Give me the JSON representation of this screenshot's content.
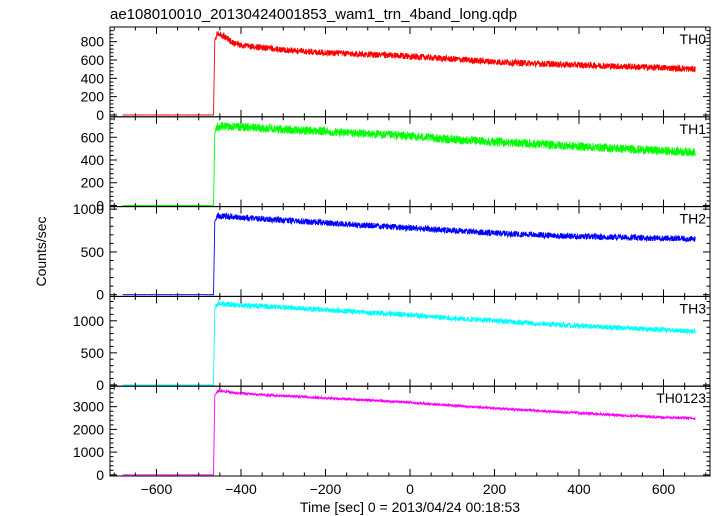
{
  "chart_data": {
    "type": "line",
    "title": "ae108010010_20130424001853_wam1_trn_4band_long.qdp",
    "xlabel": "Time [sec] 0 = 2013/04/24 00:18:53",
    "ylabel": "Counts/sec",
    "xlim": [
      -710,
      710
    ],
    "xticks": [
      -600,
      -400,
      -200,
      0,
      200,
      400,
      600
    ],
    "xtick_labels": [
      "−600",
      "−400",
      "−200",
      "0",
      "200",
      "400",
      "600"
    ],
    "trigger_x": -460,
    "grid": false,
    "panels": [
      {
        "name": "TH0",
        "color": "#ff0000",
        "ylim": [
          -20,
          960
        ],
        "yticks": [
          0,
          200,
          400,
          600,
          800
        ],
        "series": {
          "x": [
            -680,
            -465,
            -462,
            -455,
            -440,
            -420,
            -400,
            -300,
            -200,
            -100,
            0,
            100,
            200,
            300,
            400,
            500,
            600,
            675
          ],
          "y": [
            0,
            0,
            820,
            900,
            860,
            790,
            760,
            710,
            680,
            660,
            640,
            610,
            580,
            560,
            545,
            530,
            515,
            500
          ]
        },
        "noise": 35
      },
      {
        "name": "TH1",
        "color": "#00ff00",
        "ylim": [
          -10,
          780
        ],
        "yticks": [
          0,
          200,
          400,
          600
        ],
        "series": {
          "x": [
            -680,
            -465,
            -462,
            -455,
            -440,
            -400,
            -300,
            -200,
            -100,
            0,
            100,
            200,
            300,
            400,
            500,
            600,
            675
          ],
          "y": [
            0,
            0,
            640,
            690,
            700,
            690,
            670,
            650,
            630,
            610,
            580,
            560,
            540,
            520,
            500,
            480,
            470
          ]
        },
        "noise": 38
      },
      {
        "name": "TH2",
        "color": "#0000ff",
        "ylim": [
          -20,
          1030
        ],
        "yticks": [
          0,
          500,
          1000
        ],
        "series": {
          "x": [
            -680,
            -465,
            -462,
            -455,
            -440,
            -400,
            -300,
            -200,
            -100,
            0,
            100,
            200,
            300,
            400,
            500,
            600,
            675
          ],
          "y": [
            0,
            0,
            860,
            920,
            920,
            900,
            870,
            840,
            810,
            780,
            750,
            720,
            700,
            680,
            670,
            660,
            650
          ]
        },
        "noise": 35
      },
      {
        "name": "TH3",
        "color": "#00ffff",
        "ylim": [
          -20,
          1380
        ],
        "yticks": [
          0,
          500,
          1000
        ],
        "series": {
          "x": [
            -680,
            -465,
            -462,
            -455,
            -440,
            -400,
            -300,
            -200,
            -100,
            0,
            100,
            200,
            300,
            400,
            500,
            600,
            675
          ],
          "y": [
            0,
            0,
            1200,
            1270,
            1260,
            1240,
            1210,
            1170,
            1130,
            1090,
            1040,
            1000,
            960,
            920,
            890,
            860,
            830
          ]
        },
        "noise": 40
      },
      {
        "name": "TH0123",
        "color": "#ff00ff",
        "ylim": [
          -50,
          3900
        ],
        "yticks": [
          0,
          1000,
          2000,
          3000
        ],
        "ytick_labels": [
          "0",
          "1000",
          "2000",
          "3000"
        ],
        "series": {
          "x": [
            -680,
            -465,
            -462,
            -455,
            -440,
            -420,
            -400,
            -300,
            -200,
            -100,
            0,
            100,
            200,
            300,
            400,
            500,
            600,
            675
          ],
          "y": [
            0,
            0,
            3500,
            3700,
            3680,
            3620,
            3580,
            3470,
            3380,
            3290,
            3180,
            3050,
            2930,
            2820,
            2720,
            2620,
            2530,
            2480
          ]
        },
        "noise": 55
      }
    ]
  }
}
